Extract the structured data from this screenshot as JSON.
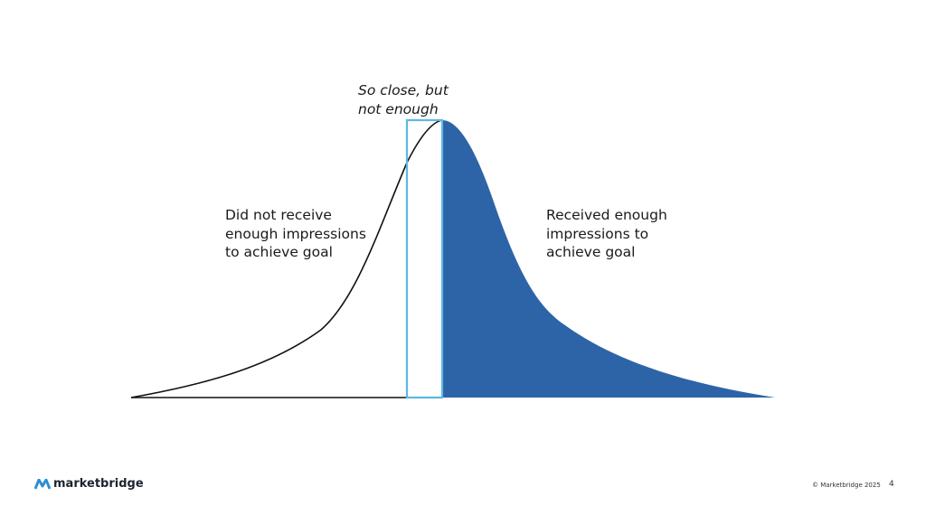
{
  "annotations": {
    "close": [
      "So close, but",
      "not enough"
    ],
    "left": [
      "Did not receive",
      "enough impressions",
      "to achieve goal"
    ],
    "right": [
      "Received enough",
      "impressions to",
      "achieve goal"
    ]
  },
  "footer": {
    "logo": "marketbridge",
    "copyright": "© Marketbridge 2025",
    "page_number": "4"
  }
}
